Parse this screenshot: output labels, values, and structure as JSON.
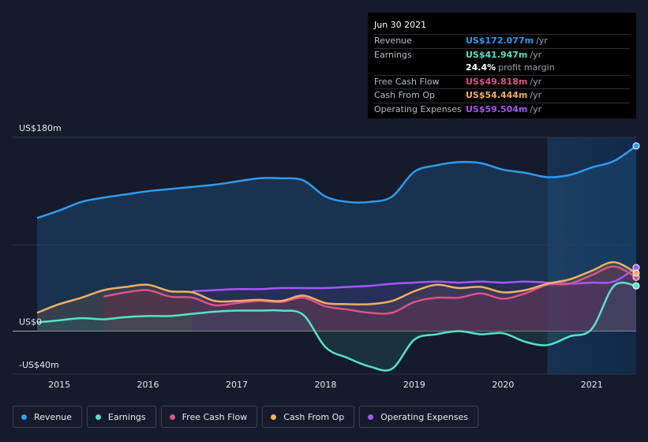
{
  "tooltip": {
    "date": "Jun 30 2021",
    "rows": [
      {
        "label": "Revenue",
        "value": "US$172.077m",
        "unit": "/yr",
        "color": "#2d9cf0"
      },
      {
        "label": "Earnings",
        "value": "US$41.947m",
        "unit": "/yr",
        "color": "#55e3c8"
      },
      {
        "label": "",
        "value": "24.4%",
        "unit": "profit margin",
        "color": "#ffffff"
      },
      {
        "label": "Free Cash Flow",
        "value": "US$49.818m",
        "unit": "/yr",
        "color": "#e0508a"
      },
      {
        "label": "Cash From Op",
        "value": "US$54.444m",
        "unit": "/yr",
        "color": "#f0b060"
      },
      {
        "label": "Operating Expenses",
        "value": "US$59.504m",
        "unit": "/yr",
        "color": "#a855f7"
      }
    ]
  },
  "legend": [
    {
      "label": "Revenue",
      "color": "#2d9cf0"
    },
    {
      "label": "Earnings",
      "color": "#55e3c8"
    },
    {
      "label": "Free Cash Flow",
      "color": "#e0508a"
    },
    {
      "label": "Cash From Op",
      "color": "#f0b060"
    },
    {
      "label": "Operating Expenses",
      "color": "#a855f7"
    }
  ],
  "chart_data": {
    "type": "area",
    "ylim": [
      -40,
      180
    ],
    "xlim": [
      2014.6,
      2021.5
    ],
    "y_tick_labels": [
      {
        "value": 180,
        "label": "US$180m"
      },
      {
        "value": 0,
        "label": "US$0"
      },
      {
        "value": -40,
        "label": "-US$40m"
      }
    ],
    "x_ticks": [
      2015,
      2016,
      2017,
      2018,
      2019,
      2020,
      2021
    ],
    "x_tick_labels": [
      "2015",
      "2016",
      "2017",
      "2018",
      "2019",
      "2020",
      "2021"
    ],
    "forecast_shade_start": 2020.5,
    "series": [
      {
        "name": "Revenue",
        "color": "#2d9cf0",
        "x": [
          2014.75,
          2015.0,
          2015.25,
          2015.5,
          2015.75,
          2016.0,
          2016.25,
          2016.5,
          2016.75,
          2017.0,
          2017.25,
          2017.5,
          2017.75,
          2018.0,
          2018.25,
          2018.5,
          2018.75,
          2019.0,
          2019.25,
          2019.5,
          2019.75,
          2020.0,
          2020.25,
          2020.5,
          2020.75,
          2021.0,
          2021.25,
          2021.5
        ],
        "y": [
          105,
          112,
          120,
          124,
          127,
          130,
          132,
          134,
          136,
          139,
          142,
          142,
          140,
          125,
          120,
          120,
          125,
          148,
          154,
          157,
          156,
          150,
          147,
          143,
          145,
          152,
          158,
          172
        ]
      },
      {
        "name": "Earnings",
        "color": "#55e3c8",
        "x": [
          2014.75,
          2015.0,
          2015.25,
          2015.5,
          2015.75,
          2016.0,
          2016.25,
          2016.5,
          2016.75,
          2017.0,
          2017.25,
          2017.5,
          2017.75,
          2018.0,
          2018.25,
          2018.5,
          2018.75,
          2019.0,
          2019.25,
          2019.5,
          2019.75,
          2020.0,
          2020.25,
          2020.5,
          2020.75,
          2021.0,
          2021.25,
          2021.5
        ],
        "y": [
          8,
          10,
          12,
          11,
          13,
          14,
          14,
          16,
          18,
          19,
          19,
          19,
          15,
          -15,
          -25,
          -33,
          -35,
          -8,
          -3,
          0,
          -3,
          -2,
          -10,
          -13,
          -5,
          2,
          42,
          42
        ]
      },
      {
        "name": "Free Cash Flow",
        "color": "#e0508a",
        "x": [
          2015.5,
          2015.75,
          2016.0,
          2016.25,
          2016.5,
          2016.75,
          2017.0,
          2017.25,
          2017.5,
          2017.75,
          2018.0,
          2018.25,
          2018.5,
          2018.75,
          2019.0,
          2019.25,
          2019.5,
          2019.75,
          2020.0,
          2020.25,
          2020.5,
          2020.75,
          2021.0,
          2021.25,
          2021.5
        ],
        "y": [
          32,
          36,
          38,
          32,
          31,
          24,
          26,
          28,
          27,
          31,
          23,
          20,
          17,
          17,
          27,
          31,
          31,
          35,
          30,
          35,
          43,
          44,
          52,
          60,
          50
        ]
      },
      {
        "name": "Cash From Op",
        "color": "#f0b060",
        "x": [
          2014.75,
          2015.0,
          2015.25,
          2015.5,
          2015.75,
          2016.0,
          2016.25,
          2016.5,
          2016.75,
          2017.0,
          2017.25,
          2017.5,
          2017.75,
          2018.0,
          2018.25,
          2018.5,
          2018.75,
          2019.0,
          2019.25,
          2019.5,
          2019.75,
          2020.0,
          2020.25,
          2020.5,
          2020.75,
          2021.0,
          2021.25,
          2021.5
        ],
        "y": [
          17,
          25,
          31,
          38,
          41,
          43,
          37,
          36,
          28,
          28,
          29,
          28,
          33,
          26,
          25,
          25,
          28,
          37,
          43,
          40,
          41,
          36,
          38,
          44,
          48,
          56,
          64,
          54
        ]
      },
      {
        "name": "Operating Expenses",
        "color": "#a855f7",
        "x": [
          2016.5,
          2016.75,
          2017.0,
          2017.25,
          2017.5,
          2017.75,
          2018.0,
          2018.25,
          2018.5,
          2018.75,
          2019.0,
          2019.25,
          2019.5,
          2019.75,
          2020.0,
          2020.25,
          2020.5,
          2020.75,
          2021.0,
          2021.25,
          2021.5
        ],
        "y": [
          37,
          38,
          39,
          39,
          40,
          40,
          40,
          41,
          42,
          44,
          45,
          46,
          45,
          46,
          45,
          46,
          45,
          44,
          45,
          46,
          59
        ]
      }
    ]
  }
}
